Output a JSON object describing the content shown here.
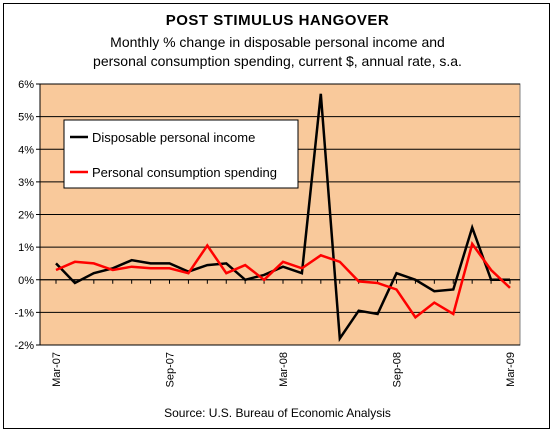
{
  "chart_data": {
    "type": "line",
    "title": "POST STIMULUS HANGOVER",
    "subtitle_lines": [
      "Monthly % change in disposable personal income and",
      "personal consumption spending, current $, annual rate, s.a."
    ],
    "source": "Source: U.S. Bureau of Economic Analysis",
    "y_ticks": [
      "6%",
      "5%",
      "4%",
      "3%",
      "2%",
      "1%",
      "0%",
      "-1%",
      "-2%"
    ],
    "ylim": [
      -2,
      6
    ],
    "x_tick_labels": [
      "Mar-07",
      "Sep-07",
      "Mar-08",
      "Sep-08",
      "Mar-09"
    ],
    "x_tick_index": [
      0,
      6,
      12,
      18,
      24
    ],
    "categories_count": 25,
    "legend_position": "upper-left",
    "plot_background": "#f9c99b",
    "series": [
      {
        "name": "Disposable personal income",
        "color": "#000000",
        "values": [
          0.5,
          -0.1,
          0.2,
          0.35,
          0.6,
          0.5,
          0.5,
          0.25,
          0.45,
          0.5,
          0.0,
          0.15,
          0.4,
          0.2,
          5.7,
          -1.8,
          -0.95,
          -1.05,
          0.2,
          0.0,
          -0.35,
          -0.3,
          1.6,
          0.0,
          0.0
        ]
      },
      {
        "name": "Personal consumption spending",
        "color": "#ff0000",
        "values": [
          0.3,
          0.55,
          0.5,
          0.3,
          0.4,
          0.35,
          0.35,
          0.2,
          1.05,
          0.2,
          0.45,
          0.0,
          0.55,
          0.35,
          0.75,
          0.55,
          -0.05,
          -0.1,
          -0.3,
          -1.15,
          -0.7,
          -1.05,
          1.1,
          0.3,
          -0.25
        ]
      }
    ]
  }
}
